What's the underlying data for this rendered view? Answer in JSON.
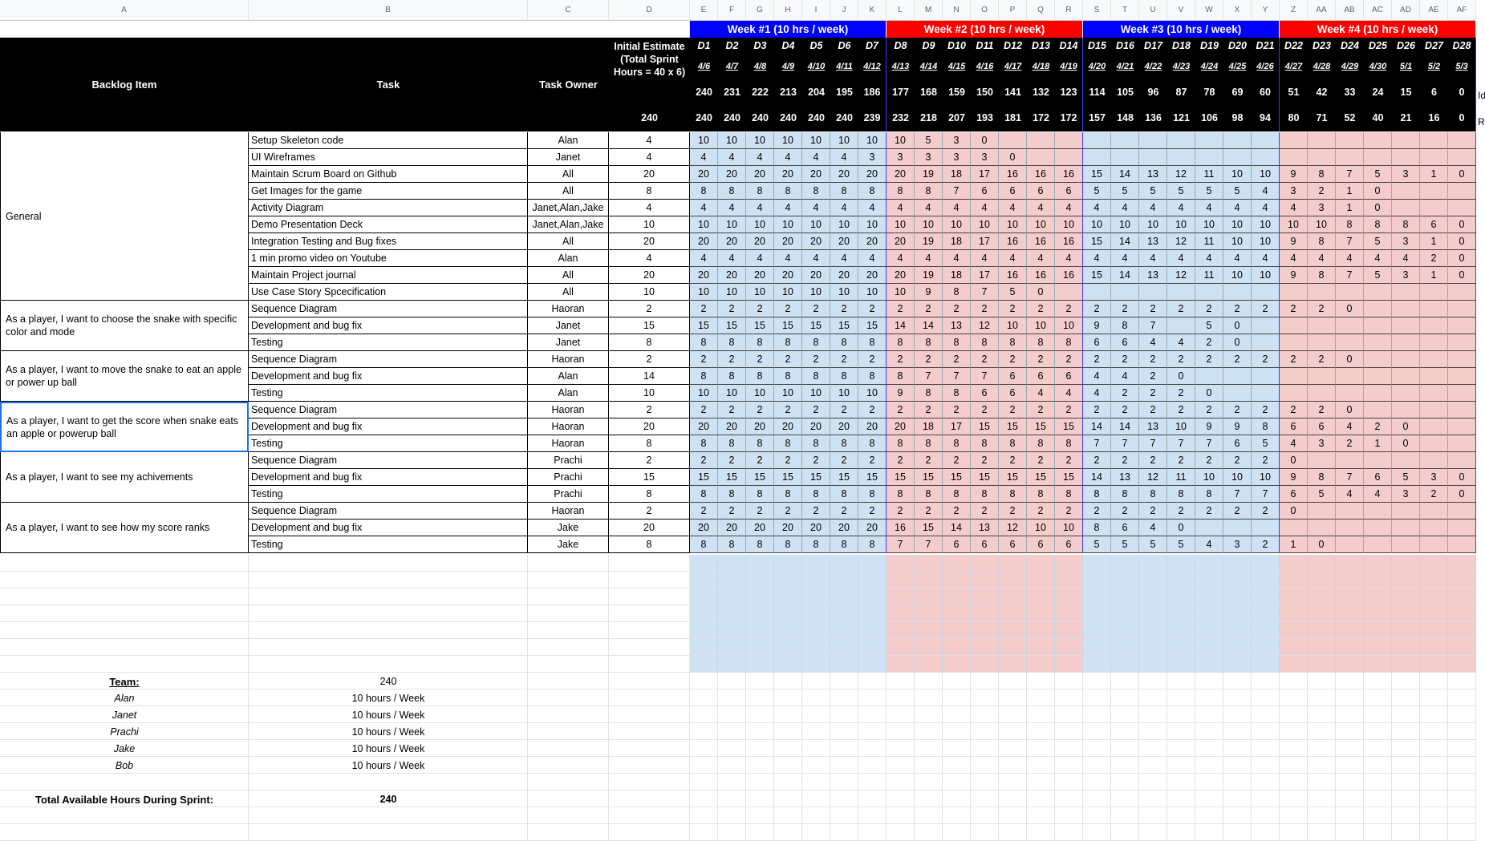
{
  "column_letters": [
    "A",
    "B",
    "C",
    "D",
    "E",
    "F",
    "G",
    "H",
    "I",
    "J",
    "K",
    "L",
    "M",
    "N",
    "O",
    "P",
    "Q",
    "R",
    "S",
    "T",
    "U",
    "V",
    "W",
    "X",
    "Y",
    "Z",
    "AA",
    "AB",
    "AC",
    "AD",
    "AE",
    "AF"
  ],
  "colors": {
    "week_blue": "#0000ff",
    "week_red": "#ff0000",
    "blue_fill": "#cfe2f3",
    "red_fill": "#f4cccc",
    "header_black": "#000000"
  },
  "header": {
    "backlog_item": "Backlog Item",
    "task": "Task",
    "task_owner": "Task Owner",
    "initial_estimate": "Initial Estimate (Total Sprint Hours = 40 x 6)",
    "initial_total": "240",
    "right_clip_1": "Id",
    "right_clip_2": "R"
  },
  "weeks": [
    "Week #1 (10 hrs / week)",
    "Week #2 (10 hrs / week)",
    "Week #3 (10 hrs / week)",
    "Week #4 (10 hrs / week)"
  ],
  "days": [
    "D1",
    "D2",
    "D3",
    "D4",
    "D5",
    "D6",
    "D7",
    "D8",
    "D9",
    "D10",
    "D11",
    "D12",
    "D13",
    "D14",
    "D15",
    "D16",
    "D17",
    "D18",
    "D19",
    "D20",
    "D21",
    "D22",
    "D23",
    "D24",
    "D25",
    "D26",
    "D27",
    "D28"
  ],
  "dates": [
    "4/6",
    "4/7",
    "4/8",
    "4/9",
    "4/10",
    "4/11",
    "4/12",
    "4/13",
    "4/14",
    "4/15",
    "4/16",
    "4/17",
    "4/18",
    "4/19",
    "4/20",
    "4/21",
    "4/22",
    "4/23",
    "4/24",
    "4/25",
    "4/26",
    "4/27",
    "4/28",
    "4/29",
    "4/30",
    "5/1",
    "5/2",
    "5/3"
  ],
  "ideal": [
    "240",
    "231",
    "222",
    "213",
    "204",
    "195",
    "186",
    "177",
    "168",
    "159",
    "150",
    "141",
    "132",
    "123",
    "114",
    "105",
    "96",
    "87",
    "78",
    "69",
    "60",
    "51",
    "42",
    "33",
    "24",
    "15",
    "6",
    "0"
  ],
  "remaining": [
    "240",
    "240",
    "240",
    "240",
    "240",
    "240",
    "239",
    "232",
    "218",
    "207",
    "193",
    "181",
    "172",
    "172",
    "157",
    "148",
    "136",
    "121",
    "106",
    "98",
    "94",
    "80",
    "71",
    "52",
    "40",
    "21",
    "16",
    "0"
  ],
  "groups": [
    {
      "label": "General",
      "rows": 10
    },
    {
      "label": "As a player, I want to choose the snake with specific color and mode",
      "rows": 3
    },
    {
      "label": "As a player, I want to move the snake to eat an apple or power up ball",
      "rows": 3
    },
    {
      "label": "As a player, I want to get the score when snake eats an apple or powerup ball",
      "rows": 3
    },
    {
      "label": "As a player, I want to see my achivements",
      "rows": 3
    },
    {
      "label": "As a player, I want to see how my score ranks",
      "rows": 3
    }
  ],
  "tasks": [
    {
      "task": "Setup Skeleton code",
      "owner": "Alan",
      "est": "4",
      "days": [
        "10",
        "10",
        "10",
        "10",
        "10",
        "10",
        "10",
        "10",
        "5",
        "3",
        "0"
      ]
    },
    {
      "task": "UI Wireframes",
      "owner": "Janet",
      "est": "4",
      "days": [
        "4",
        "4",
        "4",
        "4",
        "4",
        "4",
        "3",
        "3",
        "3",
        "3",
        "3",
        "0"
      ]
    },
    {
      "task": "Maintain Scrum Board on Github",
      "owner": "All",
      "est": "20",
      "days": [
        "20",
        "20",
        "20",
        "20",
        "20",
        "20",
        "20",
        "20",
        "19",
        "18",
        "17",
        "16",
        "16",
        "16",
        "15",
        "14",
        "13",
        "12",
        "11",
        "10",
        "10",
        "9",
        "8",
        "7",
        "5",
        "3",
        "1",
        "0"
      ]
    },
    {
      "task": "Get Images for the game",
      "owner": "All",
      "est": "8",
      "days": [
        "8",
        "8",
        "8",
        "8",
        "8",
        "8",
        "8",
        "8",
        "8",
        "7",
        "6",
        "6",
        "6",
        "6",
        "5",
        "5",
        "5",
        "5",
        "5",
        "5",
        "4",
        "3",
        "2",
        "1",
        "0"
      ]
    },
    {
      "task": "Activity Diagram",
      "owner": "Janet,Alan,Jake",
      "est": "4",
      "days": [
        "4",
        "4",
        "4",
        "4",
        "4",
        "4",
        "4",
        "4",
        "4",
        "4",
        "4",
        "4",
        "4",
        "4",
        "4",
        "4",
        "4",
        "4",
        "4",
        "4",
        "4",
        "4",
        "3",
        "1",
        "0"
      ]
    },
    {
      "task": "Demo Presentation Deck",
      "owner": "Janet,Alan,Jake",
      "est": "10",
      "days": [
        "10",
        "10",
        "10",
        "10",
        "10",
        "10",
        "10",
        "10",
        "10",
        "10",
        "10",
        "10",
        "10",
        "10",
        "10",
        "10",
        "10",
        "10",
        "10",
        "10",
        "10",
        "10",
        "10",
        "8",
        "8",
        "8",
        "6",
        "0"
      ]
    },
    {
      "task": "Integration Testing and Bug fixes",
      "owner": "All",
      "est": "20",
      "days": [
        "20",
        "20",
        "20",
        "20",
        "20",
        "20",
        "20",
        "20",
        "19",
        "18",
        "17",
        "16",
        "16",
        "16",
        "15",
        "14",
        "13",
        "12",
        "11",
        "10",
        "10",
        "9",
        "8",
        "7",
        "5",
        "3",
        "1",
        "0"
      ]
    },
    {
      "task": "1 min promo video on Youtube",
      "owner": "Alan",
      "est": "4",
      "days": [
        "4",
        "4",
        "4",
        "4",
        "4",
        "4",
        "4",
        "4",
        "4",
        "4",
        "4",
        "4",
        "4",
        "4",
        "4",
        "4",
        "4",
        "4",
        "4",
        "4",
        "4",
        "4",
        "4",
        "4",
        "4",
        "4",
        "2",
        "0"
      ]
    },
    {
      "task": "Maintain Project journal",
      "owner": "All",
      "est": "20",
      "days": [
        "20",
        "20",
        "20",
        "20",
        "20",
        "20",
        "20",
        "20",
        "19",
        "18",
        "17",
        "16",
        "16",
        "16",
        "15",
        "14",
        "13",
        "12",
        "11",
        "10",
        "10",
        "9",
        "8",
        "7",
        "5",
        "3",
        "1",
        "0"
      ]
    },
    {
      "task": "Use Case Story Spcecification",
      "owner": "All",
      "est": "10",
      "days": [
        "10",
        "10",
        "10",
        "10",
        "10",
        "10",
        "10",
        "10",
        "9",
        "8",
        "7",
        "5",
        "0"
      ]
    },
    {
      "task": "Sequence Diagram",
      "owner": "Haoran",
      "est": "2",
      "days": [
        "2",
        "2",
        "2",
        "2",
        "2",
        "2",
        "2",
        "2",
        "2",
        "2",
        "2",
        "2",
        "2",
        "2",
        "2",
        "2",
        "2",
        "2",
        "2",
        "2",
        "2",
        "2",
        "2",
        "0"
      ]
    },
    {
      "task": "Development and bug fix",
      "owner": "Janet",
      "est": "15",
      "days": [
        "15",
        "15",
        "15",
        "15",
        "15",
        "15",
        "15",
        "14",
        "14",
        "13",
        "12",
        "10",
        "10",
        "10",
        "9",
        "8",
        "7",
        "",
        "5",
        "0"
      ]
    },
    {
      "task": "Testing",
      "owner": "Janet",
      "est": "8",
      "days": [
        "8",
        "8",
        "8",
        "8",
        "8",
        "8",
        "8",
        "8",
        "8",
        "8",
        "8",
        "8",
        "8",
        "8",
        "6",
        "6",
        "4",
        "4",
        "2",
        "0"
      ]
    },
    {
      "task": "Sequence Diagram",
      "owner": "Haoran",
      "est": "2",
      "days": [
        "2",
        "2",
        "2",
        "2",
        "2",
        "2",
        "2",
        "2",
        "2",
        "2",
        "2",
        "2",
        "2",
        "2",
        "2",
        "2",
        "2",
        "2",
        "2",
        "2",
        "2",
        "2",
        "2",
        "0"
      ]
    },
    {
      "task": "Development and bug fix",
      "owner": "Alan",
      "est": "14",
      "days": [
        "8",
        "8",
        "8",
        "8",
        "8",
        "8",
        "8",
        "8",
        "7",
        "7",
        "7",
        "6",
        "6",
        "6",
        "4",
        "4",
        "2",
        "0"
      ]
    },
    {
      "task": "Testing",
      "owner": "Alan",
      "est": "10",
      "days": [
        "10",
        "10",
        "10",
        "10",
        "10",
        "10",
        "10",
        "9",
        "8",
        "8",
        "6",
        "6",
        "4",
        "4",
        "4",
        "2",
        "2",
        "2",
        "0"
      ]
    },
    {
      "task": "Sequence Diagram",
      "owner": "Haoran",
      "est": "2",
      "days": [
        "2",
        "2",
        "2",
        "2",
        "2",
        "2",
        "2",
        "2",
        "2",
        "2",
        "2",
        "2",
        "2",
        "2",
        "2",
        "2",
        "2",
        "2",
        "2",
        "2",
        "2",
        "2",
        "2",
        "0"
      ]
    },
    {
      "task": "Development and bug fix",
      "owner": "Haoran",
      "est": "20",
      "days": [
        "20",
        "20",
        "20",
        "20",
        "20",
        "20",
        "20",
        "20",
        "18",
        "17",
        "15",
        "15",
        "15",
        "15",
        "14",
        "14",
        "13",
        "10",
        "9",
        "9",
        "8",
        "6",
        "6",
        "4",
        "2",
        "0"
      ]
    },
    {
      "task": "Testing",
      "owner": "Haoran",
      "est": "8",
      "days": [
        "8",
        "8",
        "8",
        "8",
        "8",
        "8",
        "8",
        "8",
        "8",
        "8",
        "8",
        "8",
        "8",
        "8",
        "7",
        "7",
        "7",
        "7",
        "7",
        "6",
        "5",
        "4",
        "3",
        "2",
        "1",
        "0"
      ]
    },
    {
      "task": "Sequence Diagram",
      "owner": "Prachi",
      "est": "2",
      "days": [
        "2",
        "2",
        "2",
        "2",
        "2",
        "2",
        "2",
        "2",
        "2",
        "2",
        "2",
        "2",
        "2",
        "2",
        "2",
        "2",
        "2",
        "2",
        "2",
        "2",
        "2",
        "0"
      ]
    },
    {
      "task": "Development and bug fix",
      "owner": "Prachi",
      "est": "15",
      "days": [
        "15",
        "15",
        "15",
        "15",
        "15",
        "15",
        "15",
        "15",
        "15",
        "15",
        "15",
        "15",
        "15",
        "15",
        "14",
        "13",
        "12",
        "11",
        "10",
        "10",
        "10",
        "9",
        "8",
        "7",
        "6",
        "5",
        "3",
        "0"
      ]
    },
    {
      "task": "Testing",
      "owner": "Prachi",
      "est": "8",
      "days": [
        "8",
        "8",
        "8",
        "8",
        "8",
        "8",
        "8",
        "8",
        "8",
        "8",
        "8",
        "8",
        "8",
        "8",
        "8",
        "8",
        "8",
        "8",
        "8",
        "7",
        "7",
        "6",
        "5",
        "4",
        "4",
        "3",
        "2",
        "0"
      ]
    },
    {
      "task": "Sequence Diagram",
      "owner": "Haoran",
      "est": "2",
      "days": [
        "2",
        "2",
        "2",
        "2",
        "2",
        "2",
        "2",
        "2",
        "2",
        "2",
        "2",
        "2",
        "2",
        "2",
        "2",
        "2",
        "2",
        "2",
        "2",
        "2",
        "2",
        "0"
      ]
    },
    {
      "task": "Development and bug fix",
      "owner": "Jake",
      "est": "20",
      "days": [
        "20",
        "20",
        "20",
        "20",
        "20",
        "20",
        "20",
        "16",
        "15",
        "14",
        "13",
        "12",
        "10",
        "10",
        "8",
        "6",
        "4",
        "0"
      ]
    },
    {
      "task": "Testing",
      "owner": "Jake",
      "est": "8",
      "days": [
        "8",
        "8",
        "8",
        "8",
        "8",
        "8",
        "8",
        "7",
        "7",
        "6",
        "6",
        "6",
        "6",
        "6",
        "5",
        "5",
        "5",
        "5",
        "4",
        "3",
        "2",
        "1",
        "0"
      ]
    }
  ],
  "team": {
    "label": "Team:",
    "total": "240",
    "members": [
      {
        "name": "Alan",
        "hours": "10 hours / Week"
      },
      {
        "name": "Janet",
        "hours": "10 hours / Week"
      },
      {
        "name": "Prachi",
        "hours": "10 hours / Week"
      },
      {
        "name": "Jake",
        "hours": "10 hours / Week"
      },
      {
        "name": "Bob",
        "hours": "10 hours / Week"
      }
    ]
  },
  "total_available": {
    "label": "Total Available Hours During Sprint:",
    "value": "240"
  }
}
